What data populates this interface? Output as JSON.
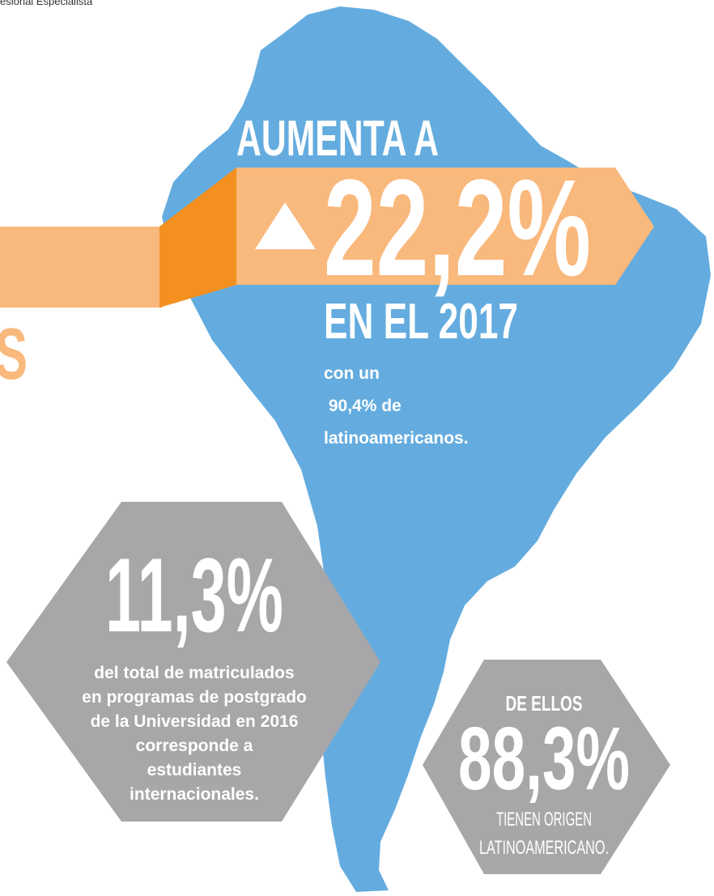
{
  "header": {
    "text": "esional Especialista"
  },
  "banner": {
    "top": "AUMENTA A",
    "value": "22,2%",
    "bottom": "EN EL 2017",
    "note": [
      "con un",
      " 90,4% de",
      "latinoamericanos."
    ],
    "side_letter": "S"
  },
  "left_hexagon": {
    "value": "11,3%",
    "lines": [
      "del total de matriculados",
      "en programas de postgrado",
      "de la Universidad en 2016",
      "corresponde a",
      "estudiantes",
      "internacionales."
    ]
  },
  "right_hexagon": {
    "top": "DE ELLOS",
    "value": "88,3%",
    "lines": [
      "TIENEN ORIGEN",
      "LATINOAMERICANO."
    ]
  }
}
